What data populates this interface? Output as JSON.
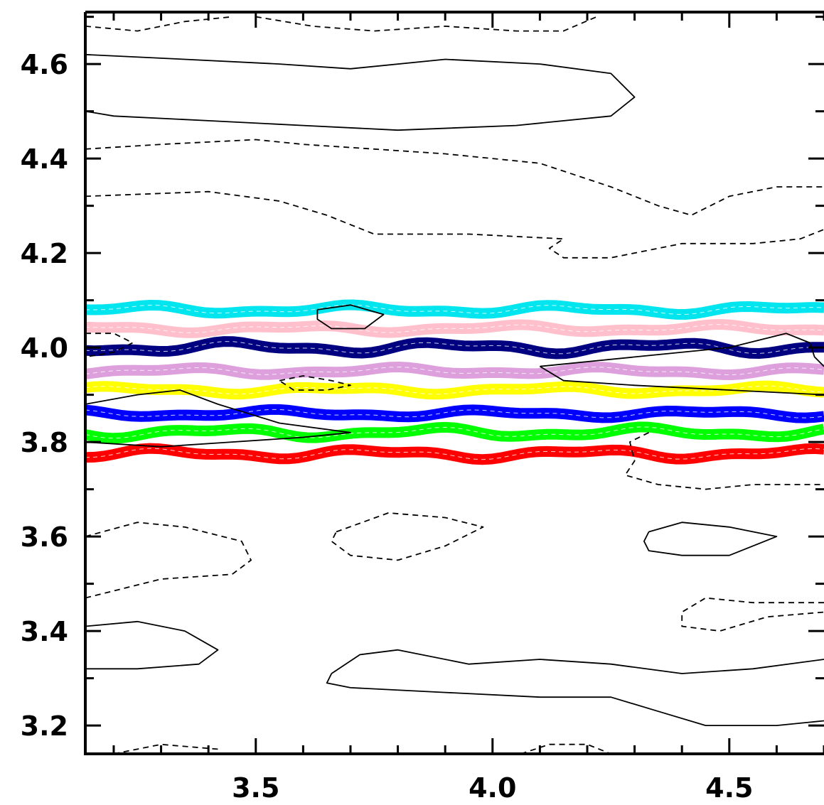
{
  "chart_data": {
    "type": "contour",
    "title": "",
    "xlabel": "",
    "ylabel": "",
    "xlim": [
      3.14,
      4.7
    ],
    "ylim": [
      3.14,
      4.71
    ],
    "x_ticks": [
      {
        "value": 3.5,
        "label": "3.5"
      },
      {
        "value": 4.0,
        "label": "4.0"
      },
      {
        "value": 4.5,
        "label": "4.5"
      }
    ],
    "y_ticks": [
      {
        "value": 3.2,
        "label": "3.2"
      },
      {
        "value": 3.4,
        "label": "3.4"
      },
      {
        "value": 3.6,
        "label": "3.6"
      },
      {
        "value": 3.8,
        "label": "3.8"
      },
      {
        "value": 4.0,
        "label": "4.0"
      },
      {
        "value": 4.2,
        "label": "4.2"
      },
      {
        "value": 4.4,
        "label": "4.4"
      },
      {
        "value": 4.6,
        "label": "4.6"
      }
    ],
    "grid": false,
    "bands": [
      {
        "color": "#00e5ee",
        "y": 4.08,
        "amp": 0.007
      },
      {
        "color": "#ffc0cb",
        "y": 4.04,
        "amp": 0.006
      },
      {
        "color": "#000080",
        "y": 4.0,
        "amp": 0.009
      },
      {
        "color": "#dda0dd",
        "y": 3.95,
        "amp": 0.006
      },
      {
        "color": "#ffff00",
        "y": 3.91,
        "amp": 0.006
      },
      {
        "color": "#0000ff",
        "y": 3.86,
        "amp": 0.006
      },
      {
        "color": "#00ff00",
        "y": 3.82,
        "amp": 0.008
      },
      {
        "color": "#ff0000",
        "y": 3.775,
        "amp": 0.008
      }
    ],
    "contours": [
      {
        "style": "dashed",
        "points": [
          [
            3.14,
            4.68
          ],
          [
            3.25,
            4.67
          ],
          [
            3.35,
            4.69
          ],
          [
            3.45,
            4.7
          ]
        ]
      },
      {
        "style": "dashed",
        "points": [
          [
            3.5,
            4.7
          ],
          [
            3.62,
            4.68
          ],
          [
            3.75,
            4.67
          ],
          [
            3.9,
            4.68
          ],
          [
            4.05,
            4.67
          ],
          [
            4.15,
            4.67
          ],
          [
            4.22,
            4.7
          ]
        ]
      },
      {
        "style": "solid",
        "points": [
          [
            3.14,
            4.62
          ],
          [
            3.35,
            4.61
          ],
          [
            3.55,
            4.6
          ],
          [
            3.7,
            4.59
          ],
          [
            3.9,
            4.61
          ],
          [
            4.1,
            4.6
          ],
          [
            4.25,
            4.58
          ],
          [
            4.3,
            4.53
          ],
          [
            4.25,
            4.49
          ],
          [
            4.05,
            4.47
          ],
          [
            3.8,
            4.46
          ],
          [
            3.6,
            4.47
          ],
          [
            3.4,
            4.48
          ],
          [
            3.2,
            4.49
          ],
          [
            3.14,
            4.5
          ]
        ]
      },
      {
        "style": "dashed",
        "points": [
          [
            3.14,
            4.42
          ],
          [
            3.3,
            4.43
          ],
          [
            3.5,
            4.44
          ],
          [
            3.6,
            4.43
          ],
          [
            3.75,
            4.42
          ],
          [
            3.9,
            4.41
          ],
          [
            4.1,
            4.39
          ],
          [
            4.25,
            4.34
          ],
          [
            4.35,
            4.3
          ],
          [
            4.42,
            4.28
          ],
          [
            4.5,
            4.32
          ],
          [
            4.6,
            4.34
          ],
          [
            4.7,
            4.34
          ]
        ]
      },
      {
        "style": "dashed",
        "points": [
          [
            3.14,
            4.32
          ],
          [
            3.4,
            4.33
          ],
          [
            3.55,
            4.31
          ],
          [
            3.65,
            4.28
          ],
          [
            3.75,
            4.24
          ],
          [
            3.95,
            4.24
          ],
          [
            4.15,
            4.23
          ],
          [
            4.12,
            4.21
          ],
          [
            4.15,
            4.19
          ],
          [
            4.25,
            4.19
          ],
          [
            4.4,
            4.22
          ],
          [
            4.55,
            4.22
          ],
          [
            4.65,
            4.23
          ],
          [
            4.7,
            4.25
          ]
        ]
      },
      {
        "style": "solid",
        "points": [
          [
            3.63,
            4.08
          ],
          [
            3.7,
            4.09
          ],
          [
            3.77,
            4.07
          ],
          [
            3.73,
            4.04
          ],
          [
            3.66,
            4.04
          ],
          [
            3.63,
            4.06
          ],
          [
            3.63,
            4.08
          ]
        ]
      },
      {
        "style": "dashed",
        "points": [
          [
            3.14,
            4.03
          ],
          [
            3.2,
            4.03
          ],
          [
            3.24,
            4.01
          ],
          [
            3.2,
            3.99
          ],
          [
            3.14,
            3.98
          ]
        ]
      },
      {
        "style": "solid",
        "points": [
          [
            4.1,
            3.96
          ],
          [
            4.3,
            3.98
          ],
          [
            4.5,
            4.0
          ],
          [
            4.62,
            4.03
          ],
          [
            4.67,
            4.01
          ],
          [
            4.68,
            3.98
          ],
          [
            4.7,
            3.96
          ]
        ]
      },
      {
        "style": "solid",
        "points": [
          [
            4.1,
            3.96
          ],
          [
            4.15,
            3.93
          ],
          [
            4.3,
            3.92
          ],
          [
            4.5,
            3.91
          ],
          [
            4.7,
            3.9
          ]
        ]
      },
      {
        "style": "dashed",
        "points": [
          [
            3.55,
            3.93
          ],
          [
            3.6,
            3.94
          ],
          [
            3.66,
            3.93
          ],
          [
            3.7,
            3.92
          ],
          [
            3.65,
            3.91
          ],
          [
            3.58,
            3.91
          ],
          [
            3.55,
            3.93
          ]
        ]
      },
      {
        "style": "solid",
        "points": [
          [
            3.14,
            3.88
          ],
          [
            3.25,
            3.9
          ],
          [
            3.34,
            3.91
          ],
          [
            3.42,
            3.88
          ],
          [
            3.55,
            3.84
          ],
          [
            3.7,
            3.82
          ],
          [
            3.6,
            3.81
          ],
          [
            3.45,
            3.8
          ],
          [
            3.3,
            3.79
          ],
          [
            3.14,
            3.8
          ]
        ]
      },
      {
        "style": "dashed",
        "points": [
          [
            4.33,
            3.82
          ],
          [
            4.29,
            3.8
          ],
          [
            4.3,
            3.76
          ],
          [
            4.28,
            3.73
          ],
          [
            4.35,
            3.71
          ],
          [
            4.45,
            3.7
          ],
          [
            4.55,
            3.71
          ],
          [
            4.7,
            3.71
          ]
        ]
      },
      {
        "style": "dashed",
        "points": [
          [
            3.14,
            3.6
          ],
          [
            3.25,
            3.63
          ],
          [
            3.35,
            3.62
          ],
          [
            3.47,
            3.59
          ],
          [
            3.49,
            3.55
          ],
          [
            3.45,
            3.52
          ],
          [
            3.3,
            3.51
          ],
          [
            3.14,
            3.47
          ]
        ]
      },
      {
        "style": "dashed",
        "points": [
          [
            3.67,
            3.61
          ],
          [
            3.78,
            3.65
          ],
          [
            3.9,
            3.64
          ],
          [
            3.98,
            3.62
          ],
          [
            3.9,
            3.58
          ],
          [
            3.8,
            3.55
          ],
          [
            3.7,
            3.56
          ],
          [
            3.66,
            3.59
          ],
          [
            3.67,
            3.61
          ]
        ]
      },
      {
        "style": "solid",
        "points": [
          [
            4.33,
            3.61
          ],
          [
            4.4,
            3.63
          ],
          [
            4.5,
            3.62
          ],
          [
            4.6,
            3.6
          ],
          [
            4.5,
            3.56
          ],
          [
            4.4,
            3.56
          ],
          [
            4.33,
            3.57
          ],
          [
            4.32,
            3.59
          ],
          [
            4.33,
            3.61
          ]
        ]
      },
      {
        "style": "dashed",
        "points": [
          [
            4.7,
            3.46
          ],
          [
            4.55,
            3.46
          ],
          [
            4.45,
            3.47
          ],
          [
            4.4,
            3.44
          ],
          [
            4.4,
            3.41
          ],
          [
            4.48,
            3.4
          ],
          [
            4.58,
            3.43
          ],
          [
            4.7,
            3.44
          ]
        ]
      },
      {
        "style": "solid",
        "points": [
          [
            3.14,
            3.41
          ],
          [
            3.25,
            3.42
          ],
          [
            3.35,
            3.4
          ],
          [
            3.42,
            3.36
          ],
          [
            3.38,
            3.33
          ],
          [
            3.25,
            3.32
          ],
          [
            3.14,
            3.32
          ]
        ]
      },
      {
        "style": "solid",
        "points": [
          [
            3.66,
            3.31
          ],
          [
            3.72,
            3.35
          ],
          [
            3.8,
            3.36
          ],
          [
            3.95,
            3.33
          ],
          [
            4.1,
            3.34
          ],
          [
            4.25,
            3.33
          ],
          [
            4.4,
            3.31
          ],
          [
            4.55,
            3.32
          ],
          [
            4.7,
            3.34
          ]
        ]
      },
      {
        "style": "solid",
        "points": [
          [
            3.66,
            3.31
          ],
          [
            3.65,
            3.29
          ],
          [
            3.7,
            3.28
          ],
          [
            3.9,
            3.27
          ],
          [
            4.1,
            3.26
          ],
          [
            4.25,
            3.26
          ],
          [
            4.35,
            3.23
          ],
          [
            4.45,
            3.2
          ],
          [
            4.6,
            3.2
          ],
          [
            4.7,
            3.21
          ]
        ]
      },
      {
        "style": "dashed",
        "points": [
          [
            3.2,
            3.14
          ],
          [
            3.3,
            3.16
          ],
          [
            3.42,
            3.15
          ]
        ]
      },
      {
        "style": "dashed",
        "points": [
          [
            4.06,
            3.14
          ],
          [
            4.12,
            3.16
          ],
          [
            4.2,
            3.16
          ],
          [
            4.25,
            3.14
          ]
        ]
      }
    ]
  }
}
